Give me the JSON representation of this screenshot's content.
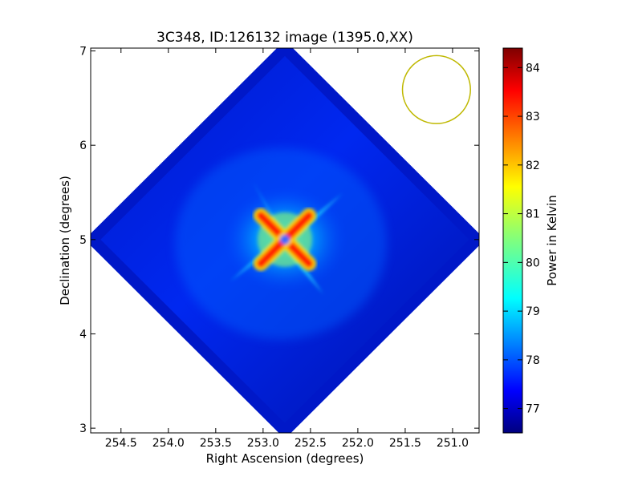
{
  "chart_data": {
    "type": "heatmap",
    "title": "3C348, ID:126132 image (1395.0,XX)",
    "xlabel": "Right Ascension (degrees)",
    "ylabel": "Declination (degrees)",
    "xlim": [
      254.82,
      250.72
    ],
    "ylim": [
      2.95,
      7.03
    ],
    "x_ticks": [
      254.5,
      254.0,
      253.5,
      253.0,
      252.5,
      252.0,
      251.5,
      251.0
    ],
    "x_tick_labels": [
      "254.5",
      "254.0",
      "253.5",
      "253.0",
      "252.5",
      "252.0",
      "251.5",
      "251.0"
    ],
    "y_ticks": [
      3,
      4,
      5,
      6,
      7
    ],
    "y_tick_labels": [
      "3",
      "4",
      "5",
      "6",
      "7"
    ],
    "colorbar": {
      "label": "Power in Kelvin",
      "range": [
        76.5,
        84.4
      ],
      "ticks": [
        77,
        78,
        79,
        80,
        81,
        82,
        83,
        84
      ],
      "tick_labels": [
        "77",
        "78",
        "79",
        "80",
        "81",
        "82",
        "83",
        "84"
      ],
      "colormap": "jet"
    },
    "field": {
      "center": [
        252.77,
        5.0
      ],
      "half_extent_ra": 2.03,
      "half_extent_dec": 2.03,
      "background_kelvin": 77.4,
      "peak_kelvin": 84.4
    },
    "beam": {
      "center": [
        251.17,
        6.59
      ],
      "radius_deg": 0.36,
      "color": "#bfb800"
    }
  }
}
